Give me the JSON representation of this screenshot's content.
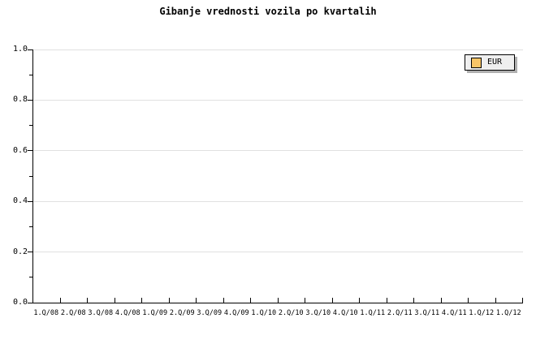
{
  "chart_data": {
    "type": "line",
    "title": "Gibanje vrednosti vozila po kvartalih",
    "categories": [
      "1.Q/08",
      "2.Q/08",
      "3.Q/08",
      "4.Q/08",
      "1.Q/09",
      "2.Q/09",
      "3.Q/09",
      "4.Q/09",
      "1.Q/10",
      "2.Q/10",
      "3.Q/10",
      "4.Q/10",
      "1.Q/11",
      "2.Q/11",
      "3.Q/11",
      "4.Q/11",
      "1.Q/12",
      "1.Q/12"
    ],
    "series": [
      {
        "name": "EUR",
        "color": "#f8c567",
        "values": []
      }
    ],
    "xlabel": "",
    "ylabel": "",
    "ylim": [
      0.0,
      1.0
    ],
    "yticks": [
      "0.0",
      "0.2",
      "0.4",
      "0.6",
      "0.8",
      "1.0"
    ],
    "y_minor_tick_step": 0.1,
    "grid": "horizontal-major-only",
    "legend_position": "top-right",
    "plot_empty": true
  },
  "colors": {
    "background": "#ffffff",
    "axis": "#000000",
    "grid": "#e0e0e0",
    "text": "#000000",
    "legend_background": "#efefef",
    "legend_border": "#000000",
    "legend_shadow": "#b0b0b0",
    "series_eur": "#f8c567"
  },
  "legend": {
    "eur_label": "EUR"
  }
}
